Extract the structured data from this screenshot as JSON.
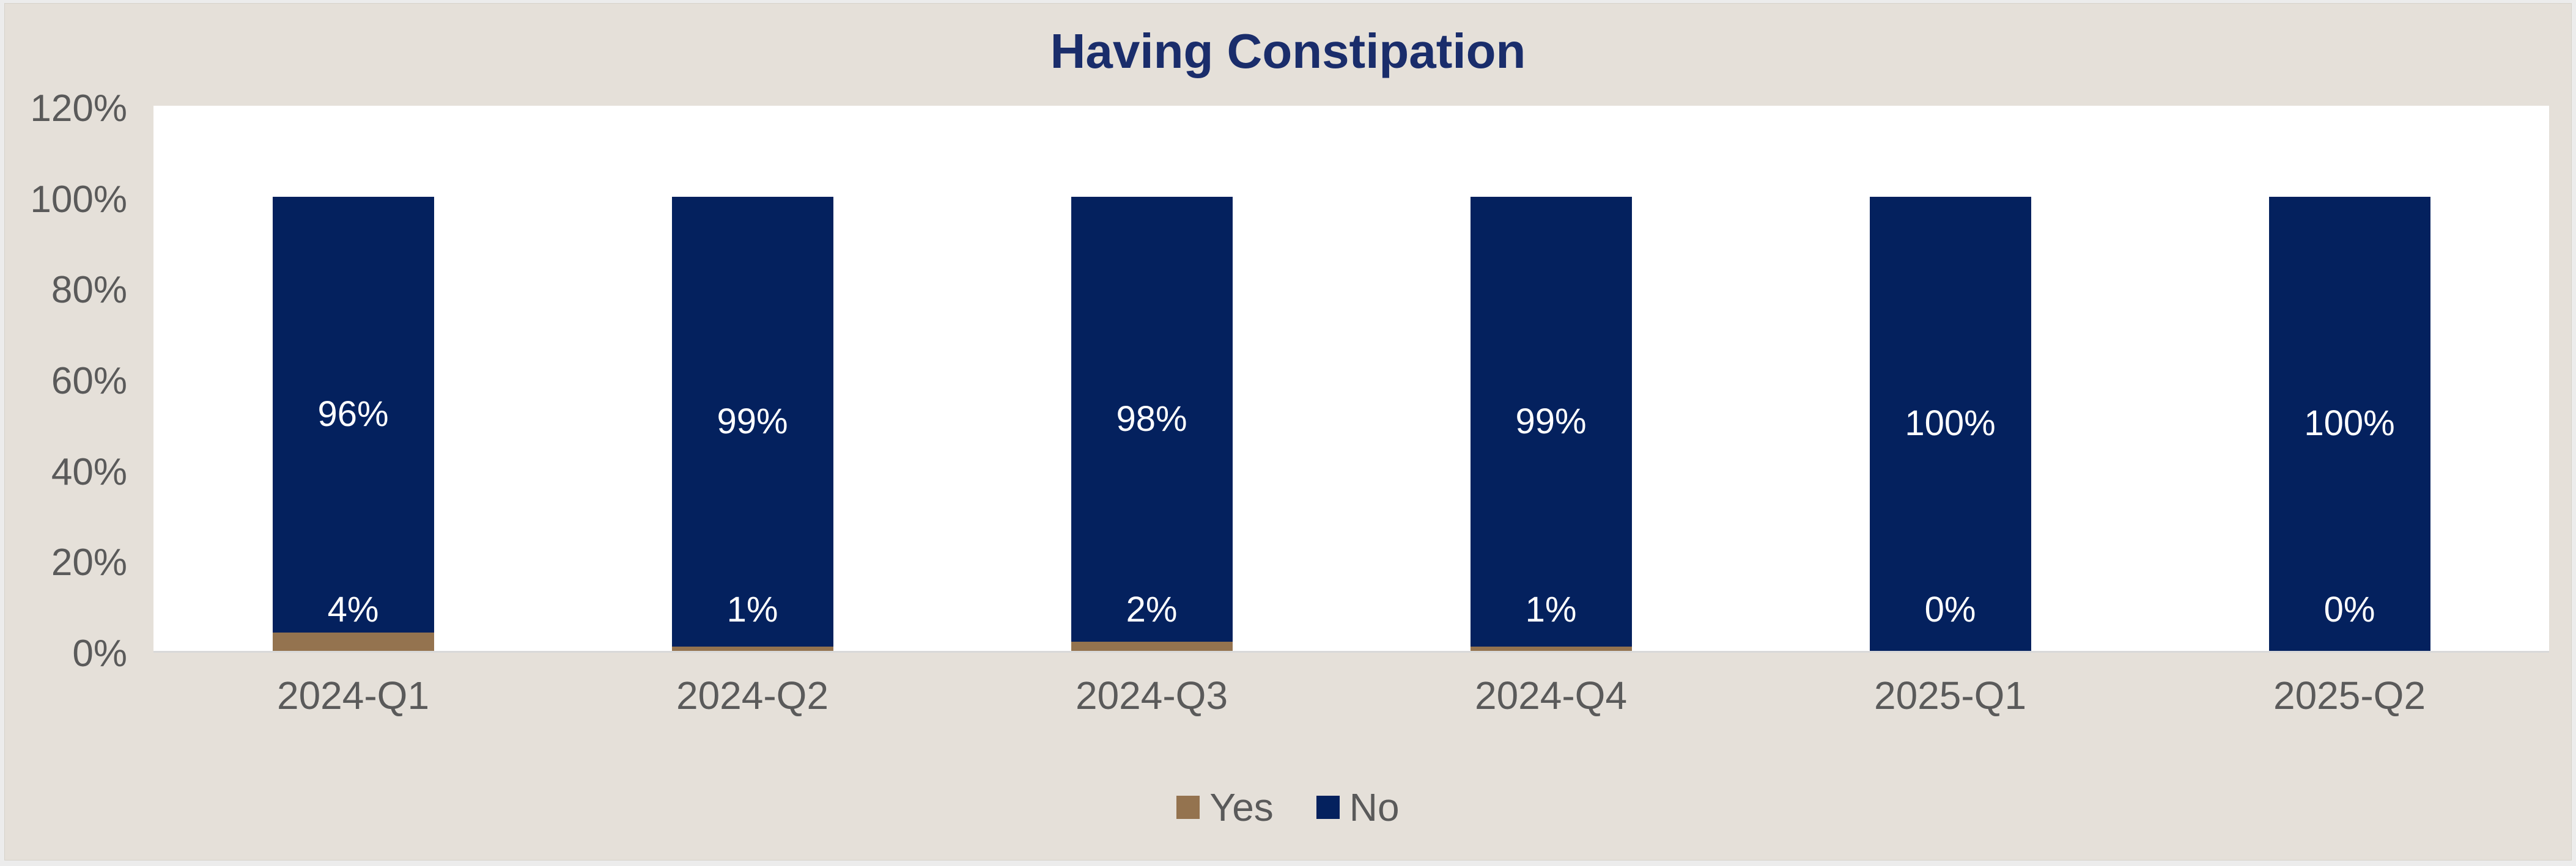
{
  "window": {
    "frame_color": "#ececec",
    "canvas_color": "#e5e0d9"
  },
  "colors": {
    "title": "#1a2d6b",
    "plot_background": "#ffffff",
    "axis_line": "#d9d9d9",
    "axis_text": "#5a5a5a",
    "data_label_text": "#ffffff"
  },
  "chart_data": {
    "type": "bar",
    "subtype": "stacked-100-column",
    "title": "Having Constipation",
    "categories": [
      "2024-Q1",
      "2024-Q2",
      "2024-Q3",
      "2024-Q4",
      "2025-Q1",
      "2025-Q2"
    ],
    "series": [
      {
        "name": "Yes",
        "color": "#94734f",
        "values": [
          4,
          1,
          2,
          1,
          0,
          0
        ],
        "labels": [
          "4%",
          "1%",
          "2%",
          "1%",
          "0%",
          "0%"
        ]
      },
      {
        "name": "No",
        "color": "#04215e",
        "values": [
          96,
          99,
          98,
          99,
          100,
          100
        ],
        "labels": [
          "96%",
          "99%",
          "98%",
          "99%",
          "100%",
          "100%"
        ]
      }
    ],
    "y_ticks": [
      "120%",
      "100%",
      "80%",
      "60%",
      "40%",
      "20%",
      "0%"
    ],
    "ylim": [
      0,
      120
    ],
    "grid": false,
    "legend_position": "bottom"
  }
}
